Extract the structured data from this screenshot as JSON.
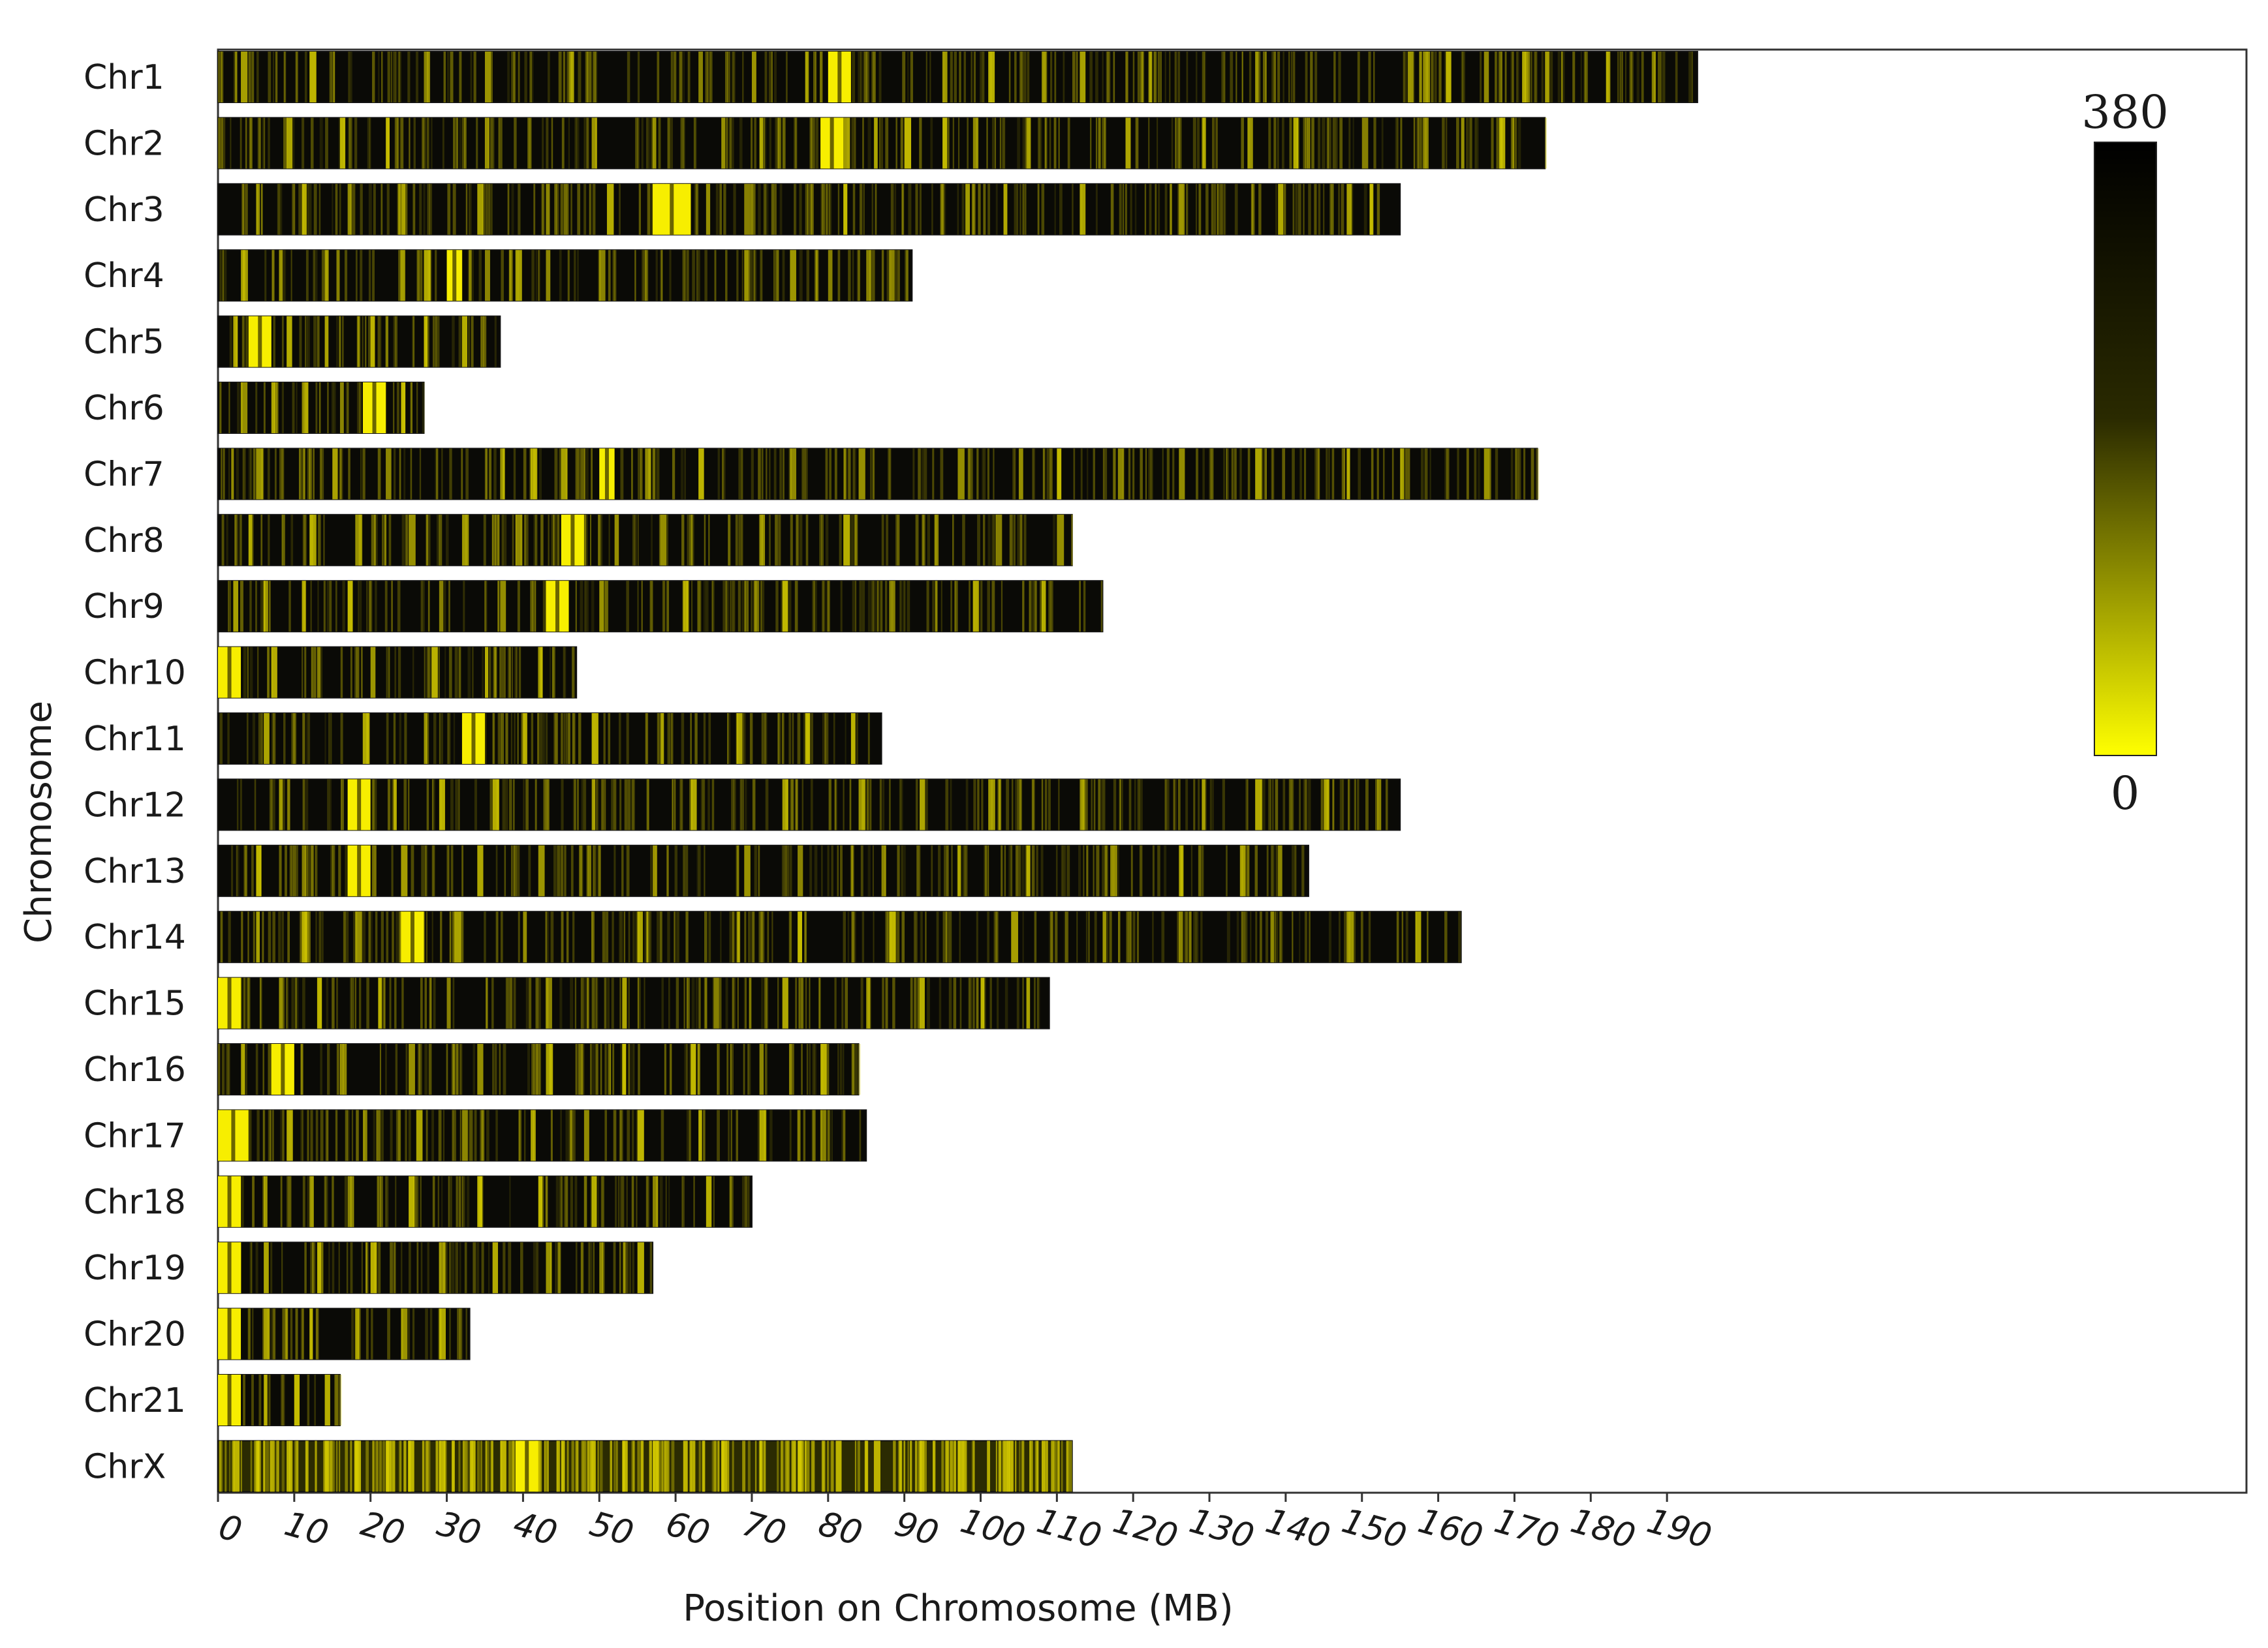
{
  "chart_data": {
    "type": "heatmap",
    "title": "",
    "xlabel": "Position on Chromosome (MB)",
    "ylabel": "Chromosome",
    "x_ticks": [
      0,
      10,
      20,
      30,
      40,
      50,
      60,
      70,
      80,
      90,
      100,
      110,
      120,
      130,
      140,
      150,
      160,
      170,
      180,
      190
    ],
    "xlim": [
      0,
      266
    ],
    "colorbar": {
      "min": 0,
      "max": 380,
      "min_label": "0",
      "max_label": "380",
      "low_color": "#ffff00",
      "high_color": "#000000"
    },
    "chromosomes": [
      {
        "name": "Chr1",
        "length_mb": 194,
        "hotspots": [
          [
            80,
            83
          ]
        ],
        "streaks": [
          3,
          12,
          27,
          35,
          46,
          63,
          70,
          77,
          95,
          101,
          108,
          113,
          122,
          136,
          156,
          158,
          161,
          166,
          171,
          174,
          182,
          188
        ]
      },
      {
        "name": "Chr2",
        "length_mb": 174,
        "hotspots": [
          [
            79,
            82
          ]
        ],
        "streaks": [
          9,
          16,
          22,
          35,
          49,
          57,
          66,
          71,
          82,
          86,
          90,
          95,
          99,
          106,
          119,
          129,
          135,
          141,
          150,
          158,
          163,
          168
        ]
      },
      {
        "name": "Chr3",
        "length_mb": 155,
        "hotspots": [
          [
            57,
            62
          ]
        ],
        "streaks": [
          5,
          11,
          17,
          24,
          34,
          43,
          51,
          64,
          69,
          82,
          98,
          103,
          113,
          126,
          139,
          148,
          151
        ]
      },
      {
        "name": "Chr4",
        "length_mb": 91,
        "hotspots": [
          [
            30,
            32
          ]
        ],
        "streaks": [
          3,
          8,
          14,
          24,
          27,
          35,
          39,
          43,
          50,
          69,
          75,
          80,
          85,
          88
        ]
      },
      {
        "name": "Chr5",
        "length_mb": 37,
        "hotspots": [
          [
            4,
            7
          ]
        ],
        "streaks": [
          2,
          9,
          14,
          20,
          27,
          32
        ]
      },
      {
        "name": "Chr6",
        "length_mb": 27,
        "hotspots": [
          [
            19,
            22
          ]
        ],
        "streaks": [
          3,
          7,
          11,
          16,
          24
        ]
      },
      {
        "name": "Chr7",
        "length_mb": 173,
        "hotspots": [
          [
            50,
            52
          ]
        ],
        "streaks": [
          5,
          15,
          22,
          37,
          41,
          45,
          56,
          63,
          75,
          84,
          97,
          105,
          110,
          118,
          126,
          136,
          148,
          155,
          166
        ]
      },
      {
        "name": "Chr8",
        "length_mb": 112,
        "hotspots": [
          [
            45,
            48
          ]
        ],
        "streaks": [
          4,
          12,
          18,
          25,
          32,
          39,
          52,
          58,
          71,
          82,
          94,
          102,
          110
        ]
      },
      {
        "name": "Chr9",
        "length_mb": 116,
        "hotspots": [
          [
            43,
            46
          ]
        ],
        "streaks": [
          2,
          6,
          11,
          17,
          29,
          37,
          50,
          61,
          74,
          88,
          99,
          108
        ]
      },
      {
        "name": "Chr10",
        "length_mb": 47,
        "hotspots": [
          [
            0,
            3
          ]
        ],
        "streaks": [
          7,
          13,
          20,
          28,
          35,
          42
        ]
      },
      {
        "name": "Chr11",
        "length_mb": 87,
        "hotspots": [
          [
            32,
            35
          ]
        ],
        "streaks": [
          6,
          19,
          27,
          40,
          49,
          58,
          68,
          77,
          83
        ]
      },
      {
        "name": "Chr12",
        "length_mb": 155,
        "hotspots": [
          [
            17,
            20
          ]
        ],
        "streaks": [
          8,
          23,
          29,
          36,
          49,
          62,
          74,
          84,
          92,
          101,
          113,
          129,
          136,
          145,
          152
        ]
      },
      {
        "name": "Chr13",
        "length_mb": 143,
        "hotspots": [
          [
            17,
            20
          ]
        ],
        "streaks": [
          5,
          11,
          24,
          34,
          42,
          57,
          69,
          76,
          87,
          97,
          106,
          117,
          126,
          134,
          139
        ]
      },
      {
        "name": "Chr14",
        "length_mb": 163,
        "hotspots": [
          [
            24,
            27
          ]
        ],
        "streaks": [
          5,
          11,
          18,
          31,
          40,
          55,
          68,
          76,
          88,
          104,
          116,
          126,
          138,
          148,
          157
        ]
      },
      {
        "name": "Chr15",
        "length_mb": 109,
        "hotspots": [
          [
            0,
            3
          ]
        ],
        "streaks": [
          8,
          13,
          21,
          30,
          43,
          53,
          65,
          74,
          85,
          92,
          100,
          106
        ]
      },
      {
        "name": "Chr16",
        "length_mb": 84,
        "hotspots": [
          [
            7,
            10
          ]
        ],
        "streaks": [
          3,
          16,
          25,
          34,
          43,
          53,
          62,
          71,
          79
        ]
      },
      {
        "name": "Chr17",
        "length_mb": 85,
        "hotspots": [
          [
            0,
            4
          ]
        ],
        "streaks": [
          9,
          19,
          26,
          32,
          41,
          48,
          55,
          63,
          71,
          79
        ]
      },
      {
        "name": "Chr18",
        "length_mb": 70,
        "hotspots": [
          [
            0,
            3
          ]
        ],
        "streaks": [
          6,
          12,
          17,
          25,
          34,
          42,
          49,
          57,
          64
        ]
      },
      {
        "name": "Chr19",
        "length_mb": 57,
        "hotspots": [
          [
            0,
            3
          ]
        ],
        "streaks": [
          6,
          13,
          20,
          29,
          36,
          43,
          50,
          55
        ]
      },
      {
        "name": "Chr20",
        "length_mb": 33,
        "hotspots": [
          [
            0,
            3
          ]
        ],
        "streaks": [
          6,
          12,
          18,
          24,
          29
        ]
      },
      {
        "name": "Chr21",
        "length_mb": 16,
        "hotspots": [
          [
            0,
            3
          ]
        ],
        "streaks": [
          6,
          10,
          14
        ]
      },
      {
        "name": "ChrX",
        "length_mb": 112,
        "hotspots": [
          [
            39,
            42
          ]
        ],
        "streaks": [
          2,
          5,
          9,
          14,
          18,
          22,
          25,
          29,
          33,
          37,
          45,
          49,
          53,
          57,
          61,
          66,
          71,
          76,
          81,
          86,
          92,
          97,
          103,
          108
        ],
        "dense": true
      }
    ]
  }
}
